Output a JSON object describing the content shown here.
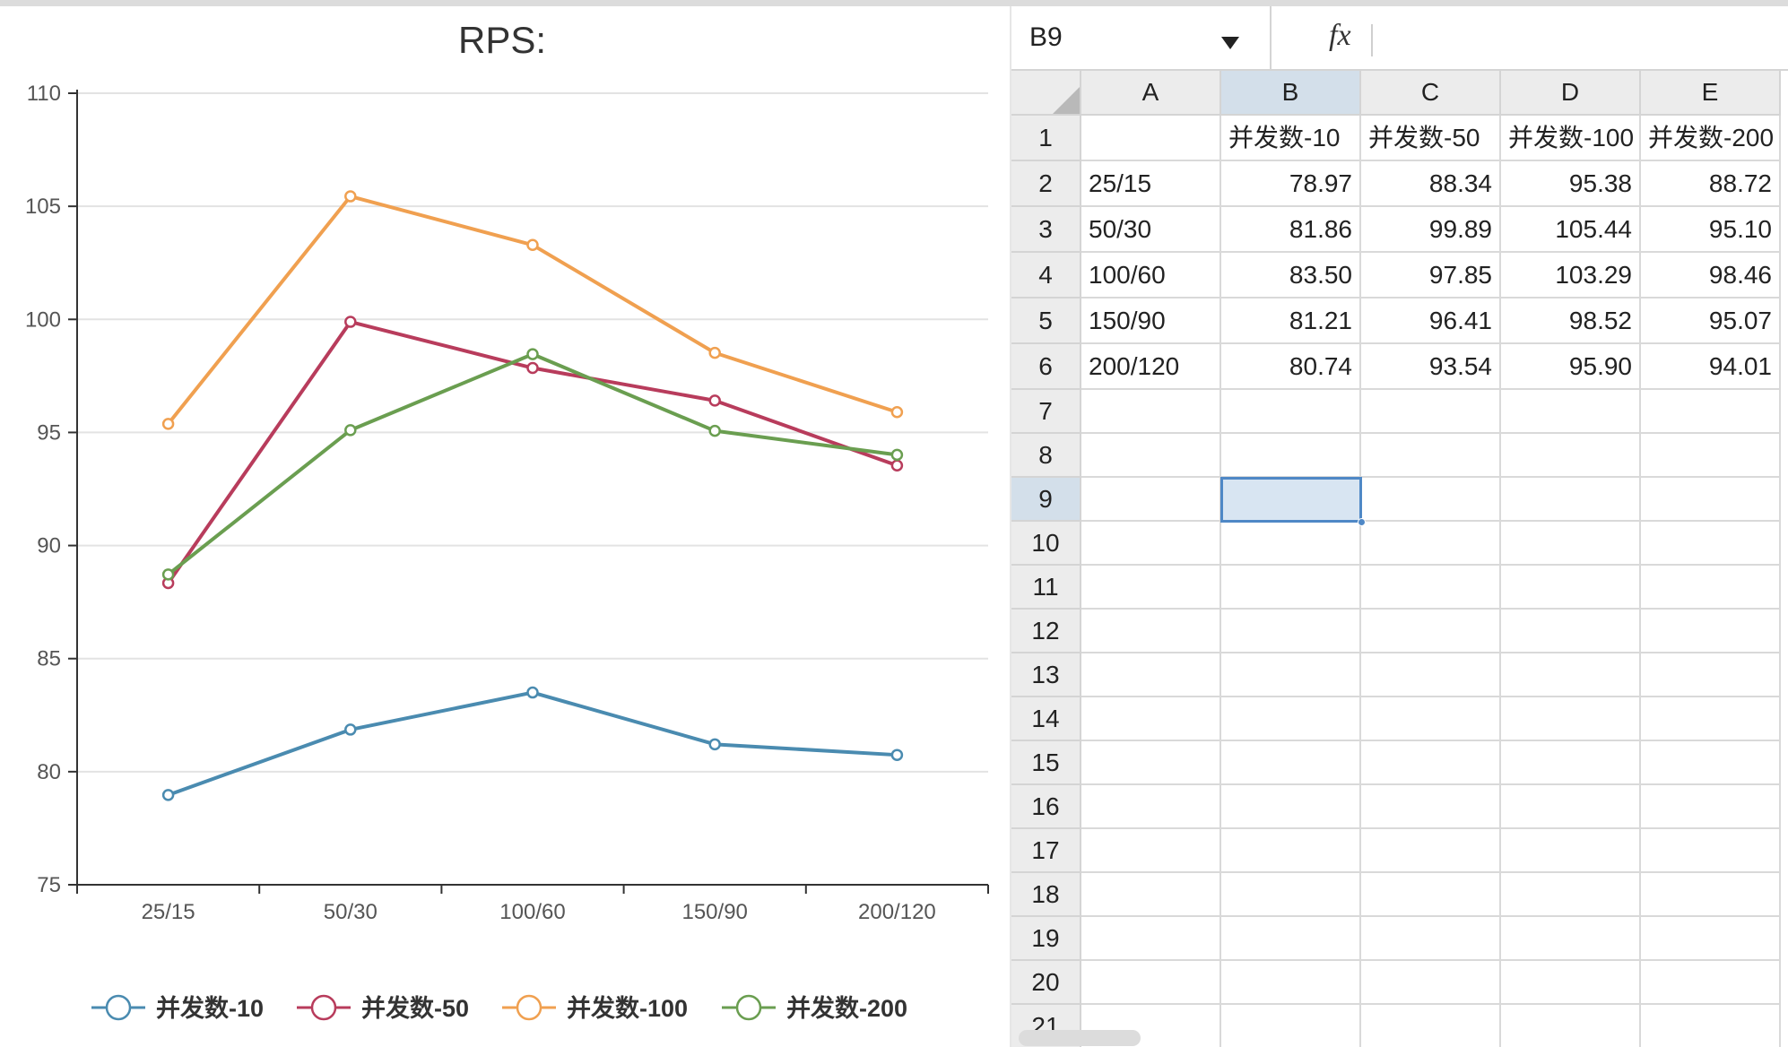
{
  "chart_data": {
    "type": "line",
    "title": "RPS:",
    "categories": [
      "25/15",
      "50/30",
      "100/60",
      "150/90",
      "200/120"
    ],
    "ylim": [
      75,
      110
    ],
    "yticks": [
      75,
      80,
      85,
      90,
      95,
      100,
      105,
      110
    ],
    "grid": true,
    "legend_position": "bottom",
    "series": [
      {
        "name": "并发数-10",
        "color": "#4a8bb0",
        "values": [
          78.97,
          81.86,
          83.5,
          81.21,
          80.74
        ]
      },
      {
        "name": "并发数-50",
        "color": "#b83c5c",
        "values": [
          88.34,
          99.89,
          97.85,
          96.41,
          93.54
        ]
      },
      {
        "name": "并发数-100",
        "color": "#f0a050",
        "values": [
          95.38,
          105.44,
          103.29,
          98.52,
          95.9
        ]
      },
      {
        "name": "并发数-200",
        "color": "#6a9e50",
        "values": [
          88.72,
          95.1,
          98.46,
          95.07,
          94.01
        ]
      }
    ]
  },
  "spreadsheet": {
    "name_box": "B9",
    "fx_label": "fx",
    "formula_value": "",
    "columns": [
      "A",
      "B",
      "C",
      "D",
      "E"
    ],
    "active_column": "B",
    "active_row": 9,
    "row_count": 21,
    "rows": [
      [
        "",
        "并发数-10",
        "并发数-50",
        "并发数-100",
        "并发数-200"
      ],
      [
        "25/15",
        "78.97",
        "88.34",
        "95.38",
        "88.72"
      ],
      [
        "50/30",
        "81.86",
        "99.89",
        "105.44",
        "95.10"
      ],
      [
        "100/60",
        "83.50",
        "97.85",
        "103.29",
        "98.46"
      ],
      [
        "150/90",
        "81.21",
        "96.41",
        "98.52",
        "95.07"
      ],
      [
        "200/120",
        "80.74",
        "93.54",
        "95.90",
        "94.01"
      ]
    ]
  }
}
